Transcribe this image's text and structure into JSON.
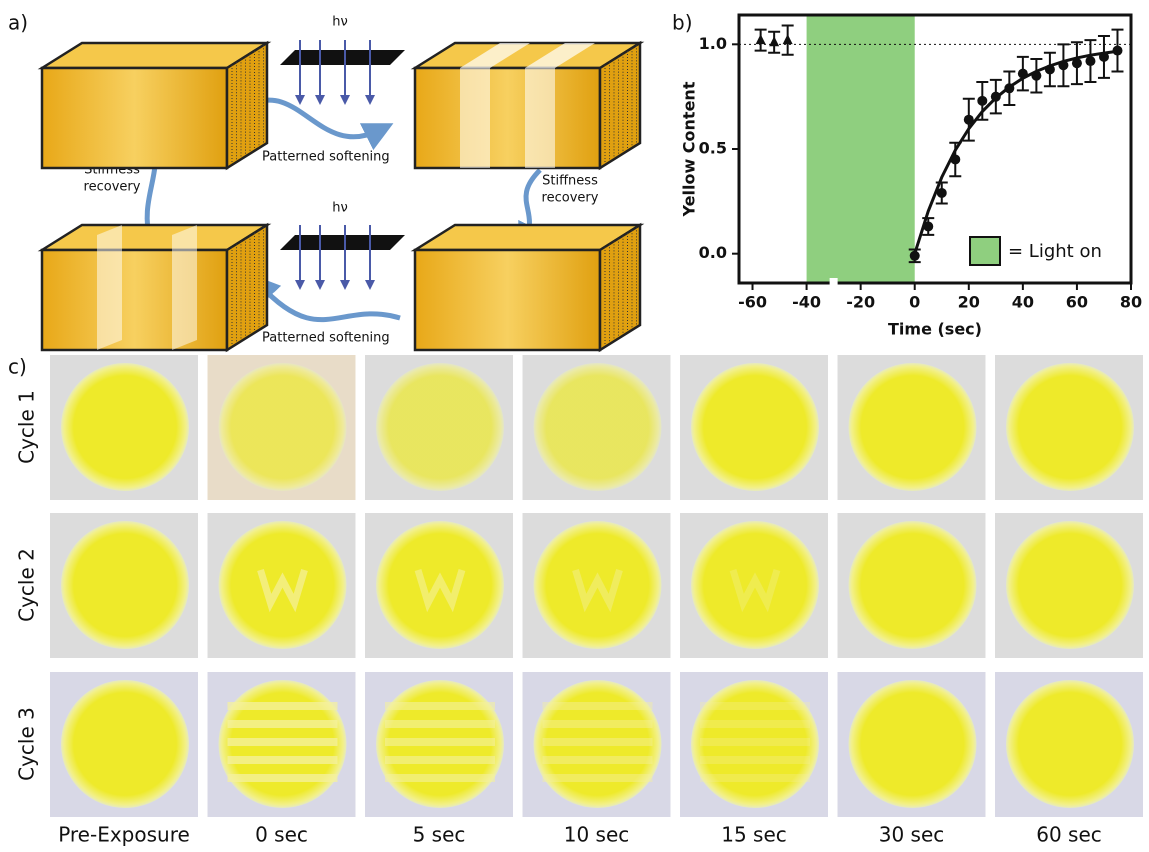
{
  "panel_a": {
    "label": "a)",
    "hv_top": "hν",
    "hv_bottom": "hν",
    "softening_top": "Patterned softening",
    "softening_bottom": "Patterned softening",
    "recovery_left": [
      "Stiffness",
      "recovery"
    ],
    "recovery_right": [
      "Stiffness",
      "recovery"
    ]
  },
  "chart_data": {
    "type": "scatter",
    "panel_label": "b)",
    "x_label": "Time (sec)",
    "y_label": "Yellow Content",
    "xlim": [
      -65,
      80
    ],
    "xticks": [
      -60,
      -40,
      -20,
      0,
      20,
      40,
      60,
      80
    ],
    "ylim": [
      -0.14,
      1.14
    ],
    "yticks": [
      {
        "value": 0,
        "label": "0.0"
      },
      {
        "value": 0.5,
        "label": "0.5"
      },
      {
        "value": 1,
        "label": "1.0"
      }
    ],
    "reference_line": 1,
    "shaded_region": {
      "x": [
        -40,
        0
      ],
      "color": "#8fcf7f",
      "label": "= Light on"
    },
    "series": [
      {
        "marker": "triangle",
        "color": "#111111",
        "x": [
          -57,
          -52,
          -47
        ],
        "values": [
          1.02,
          1.01,
          1.02
        ],
        "errors": [
          0.05,
          0.05,
          0.07
        ]
      },
      {
        "marker": "circle",
        "color": "#111111",
        "x": [
          0,
          5,
          10,
          15,
          20,
          25,
          30,
          35,
          40,
          45,
          50,
          55,
          60,
          65,
          70,
          75
        ],
        "values": [
          -0.01,
          0.13,
          0.29,
          0.45,
          0.64,
          0.73,
          0.75,
          0.79,
          0.86,
          0.85,
          0.88,
          0.9,
          0.91,
          0.92,
          0.94,
          0.97
        ],
        "errors": [
          0.03,
          0.04,
          0.05,
          0.08,
          0.1,
          0.09,
          0.08,
          0.08,
          0.08,
          0.08,
          0.08,
          0.1,
          0.1,
          0.1,
          0.1,
          0.1
        ]
      },
      {
        "marker": "line",
        "color": "#111111",
        "x": [
          0,
          5,
          10,
          15,
          20,
          25,
          30,
          35,
          40,
          45,
          50,
          55,
          60,
          65,
          70,
          75
        ],
        "values": [
          0,
          0.203,
          0.365,
          0.494,
          0.597,
          0.679,
          0.744,
          0.796,
          0.838,
          0.871,
          0.897,
          0.918,
          0.935,
          0.948,
          0.958,
          0.967
        ]
      }
    ]
  },
  "panel_c": {
    "label": "c)",
    "rows": [
      "Cycle 1",
      "Cycle 2",
      "Cycle 3"
    ],
    "columns": [
      "Pre-Exposure",
      "0 sec",
      "5 sec",
      "10 sec",
      "15 sec",
      "30 sec",
      "60 sec"
    ]
  }
}
